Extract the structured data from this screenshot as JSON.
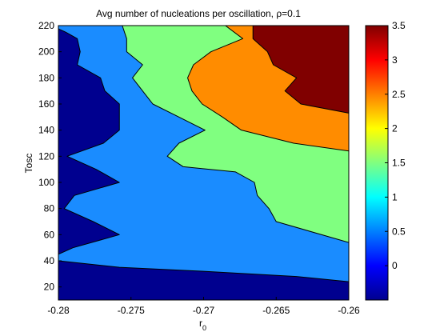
{
  "chart_data": {
    "type": "contourf",
    "title": "Avg number of nucleations per oscillation, ρ=0.1",
    "xlabel": "r",
    "xlabel_subscript": "0",
    "ylabel": "Tosc",
    "xlim": [
      -0.28,
      -0.26
    ],
    "ylim": [
      10,
      220
    ],
    "xticks": [
      "-0.28",
      "-0.275",
      "-0.27",
      "-0.265",
      "-0.26"
    ],
    "yticks": [
      "20",
      "40",
      "60",
      "80",
      "100",
      "120",
      "140",
      "160",
      "180",
      "200",
      "220"
    ],
    "colorbar": {
      "range": [
        -0.5,
        3.5
      ],
      "ticks": [
        "0",
        "0.5",
        "1",
        "1.5",
        "2",
        "2.5",
        "3",
        "3.5"
      ],
      "colormap": "jet"
    },
    "levels": [
      {
        "value": 0,
        "color": "#00008f",
        "boundary": []
      },
      {
        "value": 1,
        "color": "#1a8cff",
        "boundary": [
          [
            -0.28,
            40
          ],
          [
            -0.2758,
            35
          ],
          [
            -0.27,
            32
          ],
          [
            -0.2636,
            28
          ],
          [
            -0.26,
            24
          ],
          [
            -0.26,
            210
          ],
          [
            -0.2616,
            219
          ],
          [
            -0.2738,
            220
          ],
          [
            -0.2805,
            220
          ],
          [
            -0.2795,
            215
          ],
          [
            -0.2787,
            210
          ],
          [
            -0.2785,
            200
          ],
          [
            -0.2787,
            190
          ],
          [
            -0.2771,
            180
          ],
          [
            -0.2768,
            170
          ],
          [
            -0.2758,
            160
          ],
          [
            -0.2758,
            150
          ],
          [
            -0.2758,
            140
          ],
          [
            -0.2769,
            130
          ],
          [
            -0.2794,
            120
          ],
          [
            -0.2774,
            110
          ],
          [
            -0.2758,
            100
          ],
          [
            -0.2789,
            90
          ],
          [
            -0.2796,
            80
          ],
          [
            -0.2776,
            70
          ],
          [
            -0.2758,
            60
          ],
          [
            -0.279,
            50
          ],
          [
            -0.28,
            45
          ]
        ]
      },
      {
        "value": 1.5,
        "color": "#80ff80",
        "boundary": [
          [
            -0.26,
            54
          ],
          [
            -0.265,
            70
          ],
          [
            -0.2655,
            80
          ],
          [
            -0.2663,
            90
          ],
          [
            -0.2665,
            100
          ],
          [
            -0.2678,
            108
          ],
          [
            -0.2714,
            112
          ],
          [
            -0.2725,
            120
          ],
          [
            -0.2717,
            130
          ],
          [
            -0.2699,
            140
          ],
          [
            -0.2717,
            150
          ],
          [
            -0.2735,
            160
          ],
          [
            -0.2742,
            170
          ],
          [
            -0.2749,
            180
          ],
          [
            -0.2742,
            190
          ],
          [
            -0.2753,
            200
          ],
          [
            -0.2753,
            210
          ],
          [
            -0.2756,
            220
          ],
          [
            -0.26,
            220
          ]
        ]
      },
      {
        "value": 2.5,
        "color": "#ff8c00",
        "boundary": [
          [
            -0.26,
            124
          ],
          [
            -0.2638,
            130
          ],
          [
            -0.2674,
            140
          ],
          [
            -0.2687,
            150
          ],
          [
            -0.2701,
            160
          ],
          [
            -0.2708,
            170
          ],
          [
            -0.2711,
            180
          ],
          [
            -0.2707,
            190
          ],
          [
            -0.2695,
            200
          ],
          [
            -0.2673,
            210
          ],
          [
            -0.2685,
            220
          ],
          [
            -0.26,
            220
          ]
        ]
      },
      {
        "value": 3.5,
        "color": "#800000",
        "boundary": [
          [
            -0.26,
            153
          ],
          [
            -0.2633,
            160
          ],
          [
            -0.2644,
            170
          ],
          [
            -0.2636,
            180
          ],
          [
            -0.2652,
            190
          ],
          [
            -0.2656,
            200
          ],
          [
            -0.2666,
            210
          ],
          [
            -0.2666,
            220
          ],
          [
            -0.26,
            220
          ]
        ]
      }
    ]
  }
}
